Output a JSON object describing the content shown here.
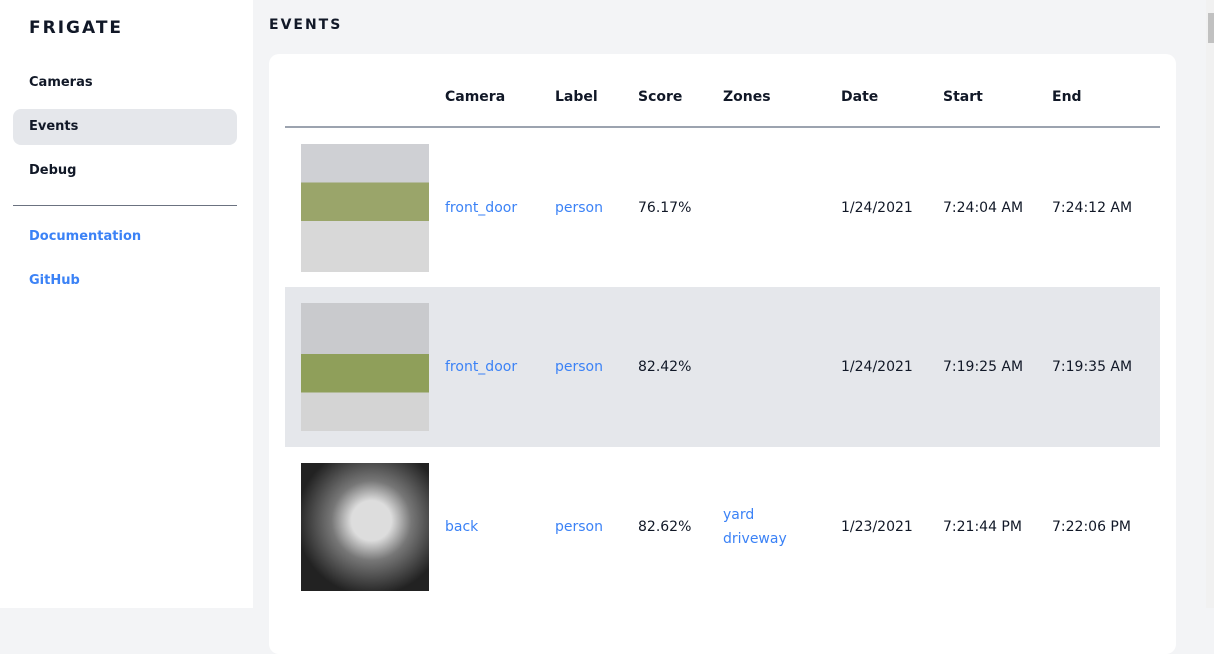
{
  "app": {
    "title": "FRIGATE"
  },
  "sidebar": {
    "items": [
      {
        "label": "Cameras"
      },
      {
        "label": "Events",
        "active": true
      },
      {
        "label": "Debug"
      }
    ],
    "links": [
      {
        "label": "Documentation"
      },
      {
        "label": "GitHub"
      }
    ]
  },
  "page": {
    "title": "EVENTS"
  },
  "table": {
    "headers": [
      "",
      "Camera",
      "Label",
      "Score",
      "Zones",
      "Date",
      "Start",
      "End"
    ],
    "rows": [
      {
        "camera": "front_door",
        "label": "person",
        "score": "76.17%",
        "zones": [
          "",
          ""
        ],
        "date": "1/24/2021",
        "start": "7:24:04 AM",
        "end": "7:24:12 AM"
      },
      {
        "camera": "front_door",
        "label": "person",
        "score": "82.42%",
        "zones": [
          "",
          ""
        ],
        "date": "1/24/2021",
        "start": "7:19:25 AM",
        "end": "7:19:35 AM"
      },
      {
        "camera": "back",
        "label": "person",
        "score": "82.62%",
        "zones": [
          "yard",
          "driveway"
        ],
        "date": "1/23/2021",
        "start": "7:21:44 PM",
        "end": "7:22:06 PM"
      }
    ]
  },
  "colors": {
    "accent": "#3b82f6",
    "active_bg": "#e5e7eb",
    "page_bg": "#f3f4f6"
  }
}
